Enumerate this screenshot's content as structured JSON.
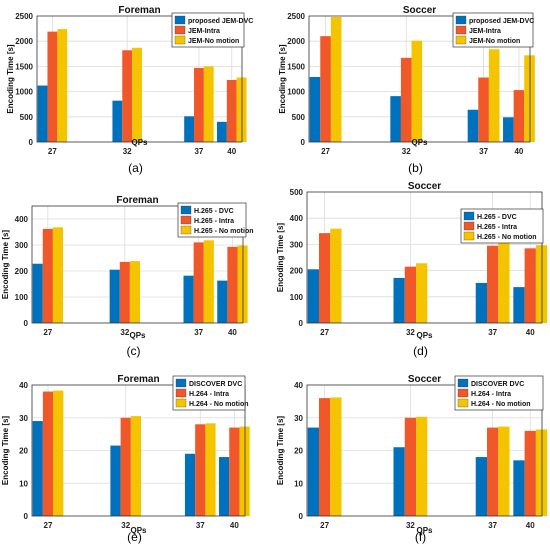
{
  "colors": {
    "blue": "#0072BD",
    "orange": "#F0582A",
    "yellow": "#F5C400"
  },
  "chart_data": [
    {
      "type": "bar",
      "panel_label": "(a)",
      "title": "Foreman",
      "ylabel": "Encoding Time [s]",
      "xlabel": "QPs",
      "categories": [
        "27",
        "32",
        "37",
        "40"
      ],
      "ylim": [
        0,
        2500
      ],
      "yticks": [
        0,
        500,
        1000,
        1500,
        2000,
        2500
      ],
      "grid": true,
      "legend_position": "top-right",
      "series": [
        {
          "name": "proposed JEM-DVC",
          "values": [
            1120,
            820,
            510,
            400
          ]
        },
        {
          "name": "JEM-Intra",
          "values": [
            2190,
            1820,
            1470,
            1230
          ]
        },
        {
          "name": "JEM-No motion",
          "values": [
            2240,
            1870,
            1500,
            1280
          ]
        }
      ]
    },
    {
      "type": "bar",
      "panel_label": "(b)",
      "title": "Soccer",
      "ylabel": "Encoding Time [s]",
      "xlabel": "QPs",
      "categories": [
        "27",
        "32",
        "37",
        "40"
      ],
      "ylim": [
        0,
        2500
      ],
      "yticks": [
        0,
        500,
        1000,
        1500,
        2000,
        2500
      ],
      "grid": true,
      "legend_position": "top-right",
      "series": [
        {
          "name": "proposed JEM-DVC",
          "values": [
            1290,
            910,
            640,
            490
          ]
        },
        {
          "name": "JEM-Intra",
          "values": [
            2100,
            1670,
            1280,
            1030
          ]
        },
        {
          "name": "JEM-No motion",
          "values": [
            2480,
            2010,
            1840,
            1720
          ]
        }
      ]
    },
    {
      "type": "bar",
      "panel_label": "(c)",
      "title": "Foreman",
      "ylabel": "Encoding Time [s]",
      "xlabel": "QPs",
      "categories": [
        "27",
        "32",
        "37",
        "40"
      ],
      "ylim": [
        0,
        450
      ],
      "yticks": [
        0,
        100,
        200,
        300,
        400
      ],
      "grid": true,
      "legend_position": "top-right",
      "series": [
        {
          "name": "H.265 - DVC",
          "values": [
            228,
            205,
            182,
            163
          ]
        },
        {
          "name": "H.265 - Intra",
          "values": [
            362,
            235,
            310,
            293
          ]
        },
        {
          "name": "H.265 - No motion",
          "values": [
            368,
            238,
            318,
            298
          ]
        }
      ]
    },
    {
      "type": "bar",
      "panel_label": "(d)",
      "title": "Soccer",
      "ylabel": "Encoding Time [s]",
      "xlabel": "QPs",
      "categories": [
        "27",
        "32",
        "37",
        "40"
      ],
      "ylim": [
        0,
        500
      ],
      "yticks": [
        0,
        100,
        200,
        300,
        400,
        500
      ],
      "grid": true,
      "legend_position": "top-right",
      "series": [
        {
          "name": "H.265 - DVC",
          "values": [
            205,
            172,
            153,
            137
          ]
        },
        {
          "name": "H.265 - Intra",
          "values": [
            343,
            215,
            295,
            285
          ]
        },
        {
          "name": "H.265 - No motion",
          "values": [
            360,
            228,
            308,
            297
          ]
        }
      ]
    },
    {
      "type": "bar",
      "panel_label": "(e)",
      "title": "Foreman",
      "ylabel": "Encoding Time [s]",
      "xlabel": "QPs",
      "categories": [
        "27",
        "32",
        "37",
        "40"
      ],
      "ylim": [
        0,
        40
      ],
      "yticks": [
        0,
        10,
        20,
        30,
        40
      ],
      "grid": true,
      "legend_position": "top-right",
      "series": [
        {
          "name": "DISCOVER DVC",
          "values": [
            29,
            21.5,
            19,
            18
          ]
        },
        {
          "name": "H.264 - Intra",
          "values": [
            38,
            30,
            28,
            27
          ]
        },
        {
          "name": "H.264 - No motion",
          "values": [
            38.3,
            30.5,
            28.3,
            27.3
          ]
        }
      ]
    },
    {
      "type": "bar",
      "panel_label": "(f)",
      "title": "Soccer",
      "ylabel": "Encoding Time [s]",
      "xlabel": "QPs",
      "categories": [
        "27",
        "32",
        "37",
        "40"
      ],
      "ylim": [
        0,
        40
      ],
      "yticks": [
        0,
        10,
        20,
        30,
        40
      ],
      "grid": true,
      "legend_position": "top-right",
      "series": [
        {
          "name": "DISCOVER DVC",
          "values": [
            27,
            21,
            18,
            17
          ]
        },
        {
          "name": "H.264 - Intra",
          "values": [
            36,
            30,
            27,
            26
          ]
        },
        {
          "name": "H.264 - No motion",
          "values": [
            36.2,
            30.3,
            27.3,
            26.4
          ]
        }
      ]
    }
  ]
}
